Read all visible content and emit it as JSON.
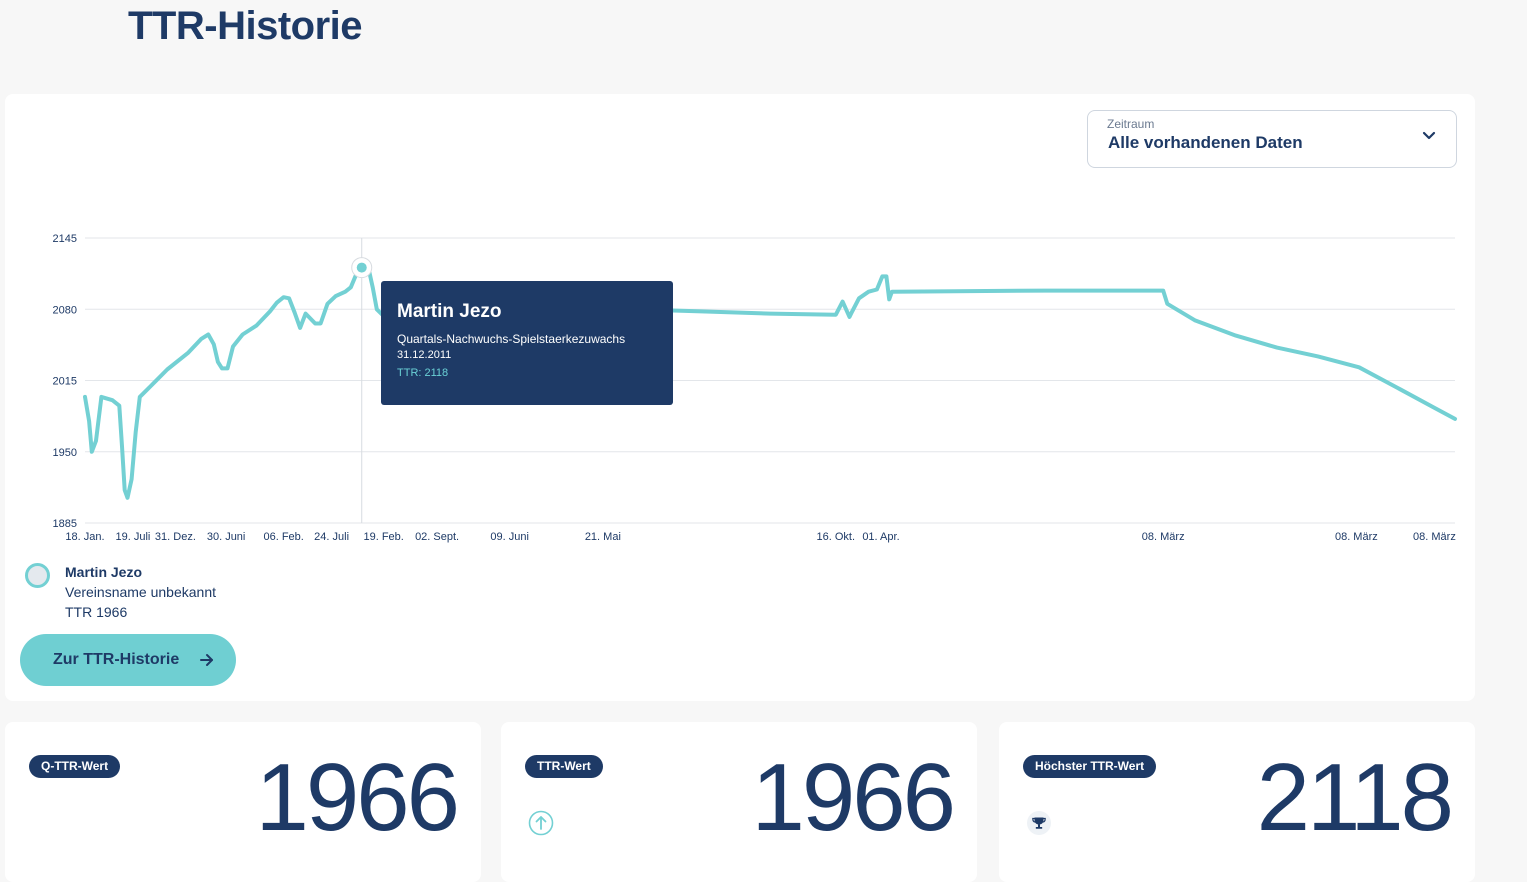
{
  "page": {
    "title": "TTR-Historie"
  },
  "filter": {
    "label": "Zeitraum",
    "value": "Alle vorhandenen Daten"
  },
  "chart_data": {
    "type": "line",
    "title": "",
    "xlabel": "",
    "ylabel": "",
    "ylim": [
      1885,
      2145
    ],
    "y_ticks": [
      1885,
      1950,
      2015,
      2080,
      2145
    ],
    "x_tick_labels": [
      "18. Jan.",
      "19. Juli",
      "31. Dez.",
      "30. Juni",
      "06. Feb.",
      "24. Juli",
      "19. Feb.",
      "02. Sept.",
      "09. Juni",
      "21. Mai",
      "16. Okt.",
      "01. Apr.",
      "08. März",
      "08. März",
      "08. März"
    ],
    "x_tick_positions": [
      0.0,
      0.035,
      0.066,
      0.103,
      0.145,
      0.18,
      0.218,
      0.257,
      0.31,
      0.378,
      0.548,
      0.581,
      0.787,
      0.928,
      0.985
    ],
    "grid": true,
    "legend": "bottom-left",
    "color": "#73d0d3",
    "series": [
      {
        "name": "Martin Jezo",
        "points": [
          [
            0.0,
            2000
          ],
          [
            0.003,
            1978
          ],
          [
            0.005,
            1950
          ],
          [
            0.008,
            1960
          ],
          [
            0.012,
            2000
          ],
          [
            0.02,
            1997
          ],
          [
            0.025,
            1992
          ],
          [
            0.027,
            1955
          ],
          [
            0.029,
            1915
          ],
          [
            0.031,
            1908
          ],
          [
            0.034,
            1925
          ],
          [
            0.037,
            1968
          ],
          [
            0.04,
            2000
          ],
          [
            0.048,
            2010
          ],
          [
            0.06,
            2025
          ],
          [
            0.075,
            2040
          ],
          [
            0.085,
            2053
          ],
          [
            0.09,
            2057
          ],
          [
            0.094,
            2048
          ],
          [
            0.097,
            2032
          ],
          [
            0.1,
            2026
          ],
          [
            0.104,
            2026
          ],
          [
            0.108,
            2046
          ],
          [
            0.115,
            2057
          ],
          [
            0.125,
            2065
          ],
          [
            0.135,
            2078
          ],
          [
            0.14,
            2086
          ],
          [
            0.145,
            2091
          ],
          [
            0.149,
            2090
          ],
          [
            0.153,
            2077
          ],
          [
            0.157,
            2063
          ],
          [
            0.161,
            2076
          ],
          [
            0.168,
            2067
          ],
          [
            0.172,
            2067
          ],
          [
            0.177,
            2085
          ],
          [
            0.183,
            2092
          ],
          [
            0.19,
            2096
          ],
          [
            0.194,
            2100
          ],
          [
            0.198,
            2112
          ],
          [
            0.202,
            2120
          ],
          [
            0.207,
            2117
          ],
          [
            0.21,
            2100
          ],
          [
            0.213,
            2080
          ],
          [
            0.217,
            2075
          ],
          [
            0.22,
            2075
          ],
          [
            0.25,
            2082
          ],
          [
            0.3,
            2083
          ],
          [
            0.33,
            2084
          ],
          [
            0.35,
            2082
          ],
          [
            0.4,
            2080
          ],
          [
            0.45,
            2078
          ],
          [
            0.5,
            2076
          ],
          [
            0.548,
            2075
          ],
          [
            0.553,
            2087
          ],
          [
            0.558,
            2073
          ],
          [
            0.56,
            2078
          ],
          [
            0.565,
            2090
          ],
          [
            0.572,
            2096
          ],
          [
            0.578,
            2098
          ],
          [
            0.582,
            2110
          ],
          [
            0.585,
            2110
          ],
          [
            0.587,
            2089
          ],
          [
            0.589,
            2096
          ],
          [
            0.7,
            2097
          ],
          [
            0.75,
            2097
          ],
          [
            0.787,
            2097
          ],
          [
            0.79,
            2085
          ],
          [
            0.81,
            2070
          ],
          [
            0.84,
            2056
          ],
          [
            0.87,
            2045
          ],
          [
            0.9,
            2037
          ],
          [
            0.93,
            2027
          ],
          [
            0.96,
            2007
          ],
          [
            0.985,
            1990
          ],
          [
            1.0,
            1980
          ]
        ]
      }
    ],
    "highlight_point": {
      "x": 0.202,
      "y": 2118
    }
  },
  "tooltip": {
    "name": "Martin Jezo",
    "type": "Quartals-Nachwuchs-Spielstaerkezuwachs",
    "date": "31.12.2011",
    "ttr": "TTR: 2118"
  },
  "legend": {
    "name": "Martin Jezo",
    "club": "Vereinsname unbekannt",
    "ttr": "TTR 1966"
  },
  "button": {
    "label": "Zur TTR-Historie"
  },
  "stats": [
    {
      "label": "Q-TTR-Wert",
      "value": "1966",
      "icon": ""
    },
    {
      "label": "TTR-Wert",
      "value": "1966",
      "icon": "arrow-up-circle-icon"
    },
    {
      "label": "Höchster TTR-Wert",
      "value": "2118",
      "icon": "trophy-icon"
    }
  ]
}
